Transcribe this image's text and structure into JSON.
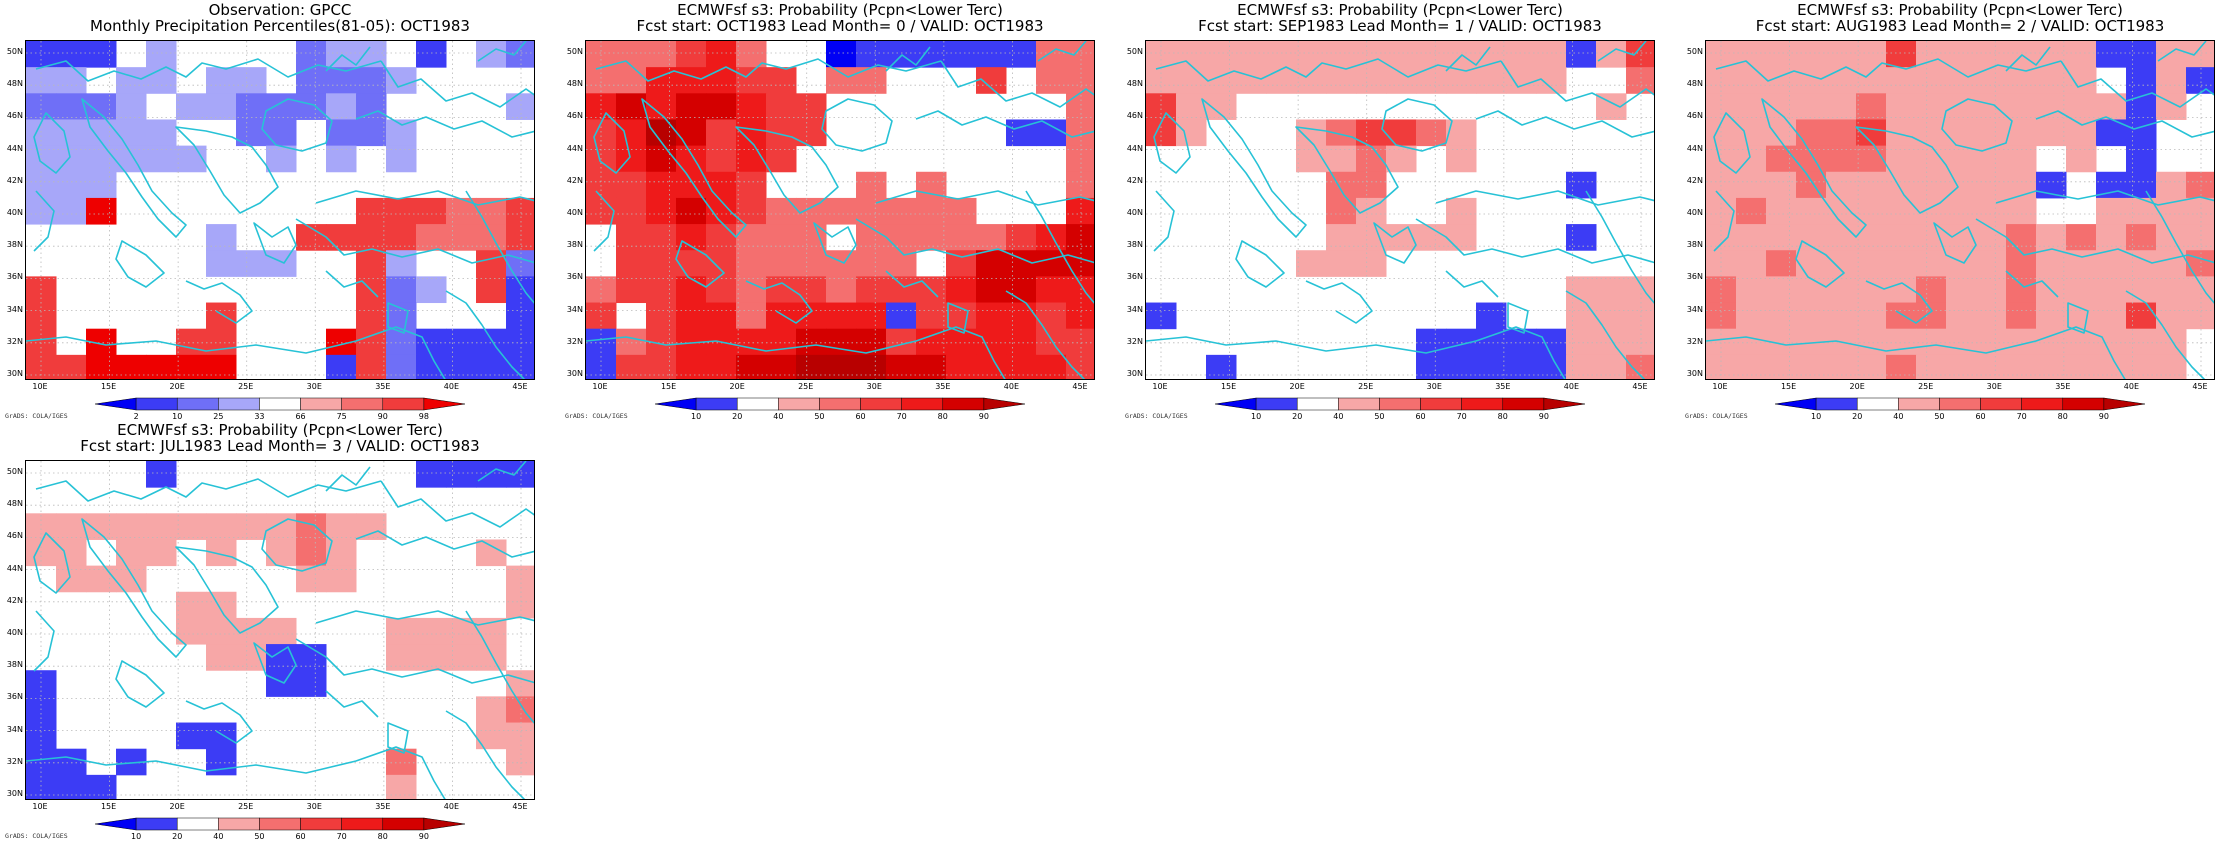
{
  "colors": {
    "coast": "#27c2d6",
    "grid": "#b9b9b9",
    "white": "#ffffff"
  },
  "axes": {
    "lon_ticks": [
      "10E",
      "15E",
      "20E",
      "25E",
      "30E",
      "35E",
      "40E",
      "45E"
    ],
    "lat_ticks": [
      "50N",
      "48N",
      "46N",
      "44N",
      "42N",
      "40N",
      "38N",
      "36N",
      "34N",
      "32N",
      "30N"
    ]
  },
  "scales": {
    "percentile": {
      "labels": [
        "2",
        "10",
        "25",
        "33",
        "66",
        "75",
        "90",
        "98"
      ],
      "colors": [
        "#0000f5",
        "#3c3cf5",
        "#6f6ff7",
        "#a7a7f9",
        "#ffffff",
        "#f7a7a7",
        "#f46f6f",
        "#f03c3c",
        "#ee0000"
      ]
    },
    "probability": {
      "labels": [
        "10",
        "20",
        "40",
        "50",
        "60",
        "70",
        "80",
        "90"
      ],
      "colors": [
        "#0000f5",
        "#3c3cf5",
        "#ffffff",
        "#f7a7a7",
        "#f46f6f",
        "#f03c3c",
        "#ee1a1a",
        "#d40000",
        "#b80000"
      ]
    }
  },
  "credit": "GrADS: COLA/IGES",
  "panels": [
    {
      "name": "panel-observation",
      "title1": "Observation: GPCC",
      "title2": "Monthly Precipitation Percentiles(81-05): OCT1983",
      "scale": "percentile",
      "grid": [
        [
          1,
          1,
          1,
          4,
          3,
          4,
          4,
          4,
          4,
          2,
          3,
          3,
          4,
          1,
          4,
          3,
          2
        ],
        [
          3,
          3,
          4,
          3,
          3,
          4,
          3,
          3,
          4,
          2,
          2,
          2,
          3,
          4,
          4,
          4,
          4
        ],
        [
          2,
          2,
          2,
          3,
          4,
          3,
          3,
          2,
          2,
          2,
          3,
          2,
          4,
          4,
          4,
          4,
          3
        ],
        [
          3,
          3,
          3,
          3,
          3,
          4,
          4,
          2,
          2,
          4,
          2,
          2,
          3,
          4,
          4,
          4,
          4
        ],
        [
          3,
          3,
          3,
          3,
          3,
          3,
          4,
          4,
          3,
          4,
          3,
          4,
          3,
          4,
          4,
          4,
          4
        ],
        [
          3,
          3,
          3,
          4,
          4,
          4,
          4,
          4,
          4,
          4,
          4,
          4,
          4,
          4,
          4,
          4,
          4
        ],
        [
          3,
          3,
          8,
          4,
          4,
          4,
          4,
          4,
          4,
          4,
          4,
          7,
          7,
          7,
          6,
          6,
          7
        ],
        [
          4,
          4,
          4,
          4,
          4,
          4,
          3,
          4,
          4,
          7,
          7,
          7,
          7,
          6,
          6,
          6,
          7
        ],
        [
          4,
          4,
          4,
          4,
          4,
          4,
          3,
          3,
          3,
          4,
          4,
          7,
          3,
          4,
          4,
          7,
          2
        ],
        [
          7,
          4,
          4,
          4,
          4,
          4,
          4,
          4,
          4,
          4,
          4,
          7,
          2,
          3,
          4,
          7,
          1
        ],
        [
          7,
          4,
          4,
          4,
          4,
          4,
          7,
          4,
          4,
          4,
          4,
          7,
          2,
          4,
          4,
          4,
          1
        ],
        [
          7,
          4,
          8,
          4,
          4,
          7,
          7,
          4,
          4,
          4,
          8,
          7,
          2,
          1,
          1,
          1,
          1
        ],
        [
          7,
          7,
          8,
          8,
          8,
          8,
          8,
          4,
          4,
          4,
          1,
          7,
          2,
          1,
          1,
          1,
          1
        ]
      ]
    },
    {
      "name": "panel-lead0",
      "title1": "ECMWFsf s3: Probability (Pcpn<Lower Terc)",
      "title2": "Fcst start: OCT1983   Lead Month= 0 / VALID: OCT1983",
      "scale": "probability",
      "grid": [
        [
          4,
          4,
          4,
          5,
          6,
          4,
          2,
          2,
          0,
          1,
          1,
          1,
          1,
          1,
          1,
          4,
          4
        ],
        [
          4,
          4,
          6,
          6,
          6,
          5,
          5,
          2,
          4,
          4,
          2,
          2,
          2,
          5,
          2,
          4,
          4
        ],
        [
          6,
          7,
          6,
          7,
          7,
          6,
          5,
          5,
          2,
          2,
          2,
          2,
          2,
          2,
          2,
          2,
          4
        ],
        [
          5,
          6,
          8,
          7,
          5,
          6,
          5,
          5,
          2,
          2,
          2,
          2,
          2,
          2,
          1,
          1,
          4
        ],
        [
          5,
          6,
          7,
          6,
          5,
          6,
          5,
          2,
          2,
          2,
          2,
          2,
          2,
          2,
          2,
          2,
          4
        ],
        [
          5,
          5,
          6,
          6,
          6,
          5,
          2,
          2,
          2,
          4,
          2,
          4,
          2,
          2,
          2,
          2,
          4
        ],
        [
          5,
          5,
          6,
          7,
          6,
          5,
          4,
          4,
          4,
          4,
          4,
          4,
          4,
          2,
          2,
          2,
          6
        ],
        [
          2,
          5,
          5,
          6,
          5,
          4,
          4,
          4,
          2,
          4,
          4,
          4,
          4,
          4,
          5,
          6,
          7
        ],
        [
          2,
          5,
          5,
          5,
          5,
          4,
          4,
          4,
          4,
          4,
          4,
          2,
          5,
          7,
          7,
          7,
          7
        ],
        [
          4,
          5,
          5,
          6,
          5,
          4,
          5,
          5,
          4,
          5,
          5,
          5,
          6,
          7,
          7,
          6,
          6
        ],
        [
          5,
          2,
          5,
          6,
          6,
          4,
          6,
          6,
          6,
          6,
          1,
          5,
          5,
          6,
          6,
          5,
          6
        ],
        [
          1,
          4,
          5,
          6,
          6,
          6,
          6,
          7,
          7,
          7,
          5,
          6,
          6,
          6,
          6,
          5,
          5
        ],
        [
          1,
          5,
          5,
          6,
          6,
          7,
          7,
          8,
          8,
          8,
          7,
          7,
          6,
          6,
          6,
          6,
          5
        ]
      ]
    },
    {
      "name": "panel-lead1",
      "title1": "ECMWFsf s3: Probability (Pcpn<Lower Terc)",
      "title2": "Fcst start: SEP1983   Lead Month= 1 / VALID: OCT1983",
      "scale": "probability",
      "grid": [
        [
          3,
          3,
          3,
          3,
          3,
          3,
          3,
          3,
          3,
          3,
          3,
          3,
          3,
          3,
          1,
          3,
          5
        ],
        [
          3,
          3,
          3,
          3,
          3,
          3,
          3,
          3,
          3,
          3,
          3,
          3,
          3,
          3,
          2,
          2,
          4
        ],
        [
          5,
          3,
          3,
          2,
          2,
          2,
          2,
          2,
          2,
          2,
          2,
          2,
          2,
          2,
          2,
          3,
          2
        ],
        [
          5,
          3,
          2,
          2,
          2,
          3,
          4,
          5,
          5,
          4,
          3,
          2,
          2,
          2,
          2,
          2,
          2
        ],
        [
          2,
          2,
          2,
          2,
          2,
          3,
          3,
          4,
          3,
          2,
          3,
          2,
          2,
          2,
          2,
          2,
          2
        ],
        [
          2,
          2,
          2,
          2,
          2,
          2,
          4,
          4,
          2,
          2,
          2,
          2,
          2,
          2,
          1,
          2,
          2
        ],
        [
          2,
          2,
          2,
          2,
          2,
          2,
          4,
          3,
          2,
          2,
          3,
          2,
          2,
          2,
          2,
          2,
          2
        ],
        [
          2,
          2,
          2,
          2,
          2,
          2,
          3,
          3,
          3,
          3,
          3,
          2,
          2,
          2,
          1,
          2,
          2
        ],
        [
          2,
          2,
          2,
          2,
          2,
          3,
          3,
          3,
          2,
          2,
          2,
          2,
          2,
          2,
          2,
          2,
          2
        ],
        [
          2,
          2,
          2,
          2,
          2,
          2,
          2,
          2,
          2,
          2,
          2,
          2,
          2,
          2,
          3,
          3,
          3
        ],
        [
          1,
          2,
          2,
          2,
          2,
          2,
          2,
          2,
          2,
          2,
          2,
          1,
          2,
          2,
          3,
          3,
          3
        ],
        [
          2,
          2,
          2,
          2,
          2,
          2,
          2,
          2,
          2,
          1,
          1,
          1,
          1,
          1,
          3,
          3,
          3
        ],
        [
          2,
          2,
          1,
          2,
          2,
          2,
          2,
          2,
          2,
          1,
          1,
          1,
          1,
          1,
          3,
          3,
          4
        ]
      ]
    },
    {
      "name": "panel-lead2",
      "title1": "ECMWFsf s3: Probability (Pcpn<Lower Terc)",
      "title2": "Fcst start: AUG1983   Lead Month= 2 / VALID: OCT1983",
      "scale": "probability",
      "grid": [
        [
          3,
          3,
          3,
          3,
          3,
          3,
          5,
          3,
          3,
          3,
          3,
          3,
          3,
          1,
          1,
          3,
          3
        ],
        [
          3,
          3,
          3,
          3,
          3,
          3,
          3,
          3,
          3,
          3,
          3,
          3,
          3,
          2,
          1,
          3,
          1
        ],
        [
          3,
          3,
          3,
          3,
          3,
          4,
          3,
          3,
          3,
          3,
          3,
          3,
          3,
          3,
          1,
          3,
          2
        ],
        [
          3,
          3,
          3,
          4,
          4,
          5,
          3,
          3,
          3,
          3,
          3,
          3,
          3,
          1,
          1,
          2,
          2
        ],
        [
          3,
          3,
          4,
          4,
          4,
          4,
          3,
          3,
          3,
          3,
          3,
          2,
          3,
          2,
          1,
          2,
          2
        ],
        [
          3,
          3,
          3,
          4,
          3,
          3,
          3,
          3,
          3,
          3,
          3,
          1,
          2,
          1,
          1,
          3,
          4
        ],
        [
          3,
          4,
          3,
          3,
          3,
          3,
          3,
          3,
          3,
          3,
          3,
          2,
          2,
          3,
          3,
          3,
          3
        ],
        [
          3,
          3,
          3,
          3,
          3,
          3,
          3,
          3,
          3,
          3,
          4,
          3,
          4,
          3,
          4,
          3,
          3
        ],
        [
          3,
          3,
          4,
          3,
          3,
          3,
          3,
          3,
          3,
          3,
          4,
          3,
          3,
          3,
          3,
          3,
          4
        ],
        [
          4,
          3,
          3,
          3,
          3,
          3,
          3,
          4,
          3,
          3,
          4,
          3,
          3,
          3,
          3,
          3,
          3
        ],
        [
          4,
          3,
          3,
          3,
          3,
          3,
          4,
          4,
          3,
          3,
          4,
          3,
          3,
          3,
          5,
          3,
          3
        ],
        [
          3,
          3,
          3,
          3,
          3,
          3,
          3,
          3,
          3,
          3,
          3,
          3,
          3,
          3,
          3,
          3,
          2
        ],
        [
          3,
          3,
          3,
          3,
          3,
          3,
          4,
          3,
          3,
          3,
          3,
          3,
          3,
          3,
          3,
          3,
          2
        ]
      ]
    },
    {
      "name": "panel-lead3",
      "title1": "ECMWFsf s3: Probability (Pcpn<Lower Terc)",
      "title2": "Fcst start: JUL1983   Lead Month= 3 / VALID: OCT1983",
      "scale": "probability",
      "grid": [
        [
          2,
          2,
          2,
          2,
          1,
          2,
          2,
          2,
          2,
          2,
          2,
          2,
          2,
          1,
          1,
          1,
          1
        ],
        [
          2,
          2,
          2,
          2,
          2,
          2,
          2,
          2,
          2,
          2,
          2,
          2,
          2,
          2,
          2,
          2,
          2
        ],
        [
          3,
          3,
          3,
          3,
          3,
          3,
          3,
          3,
          3,
          4,
          3,
          3,
          2,
          2,
          2,
          2,
          2
        ],
        [
          3,
          3,
          2,
          3,
          3,
          2,
          3,
          2,
          3,
          4,
          3,
          2,
          2,
          2,
          2,
          3,
          2
        ],
        [
          2,
          3,
          3,
          3,
          2,
          2,
          2,
          2,
          2,
          3,
          3,
          2,
          2,
          2,
          2,
          2,
          3
        ],
        [
          2,
          2,
          2,
          2,
          2,
          3,
          3,
          2,
          2,
          2,
          2,
          2,
          2,
          2,
          2,
          2,
          3
        ],
        [
          2,
          2,
          2,
          2,
          2,
          3,
          3,
          3,
          3,
          2,
          2,
          2,
          3,
          3,
          3,
          3,
          2
        ],
        [
          2,
          2,
          2,
          2,
          2,
          2,
          3,
          3,
          1,
          1,
          2,
          2,
          3,
          3,
          3,
          3,
          2
        ],
        [
          1,
          2,
          2,
          2,
          2,
          2,
          2,
          2,
          1,
          1,
          2,
          2,
          2,
          2,
          2,
          2,
          3
        ],
        [
          1,
          2,
          2,
          2,
          2,
          2,
          2,
          2,
          2,
          2,
          2,
          2,
          2,
          2,
          2,
          3,
          4
        ],
        [
          1,
          2,
          2,
          2,
          2,
          1,
          1,
          2,
          2,
          2,
          2,
          2,
          2,
          2,
          2,
          3,
          3
        ],
        [
          1,
          1,
          2,
          1,
          2,
          2,
          1,
          2,
          2,
          2,
          2,
          2,
          4,
          2,
          2,
          2,
          3
        ],
        [
          1,
          1,
          1,
          2,
          2,
          2,
          2,
          2,
          2,
          2,
          2,
          2,
          3,
          2,
          2,
          2,
          2
        ]
      ]
    }
  ]
}
